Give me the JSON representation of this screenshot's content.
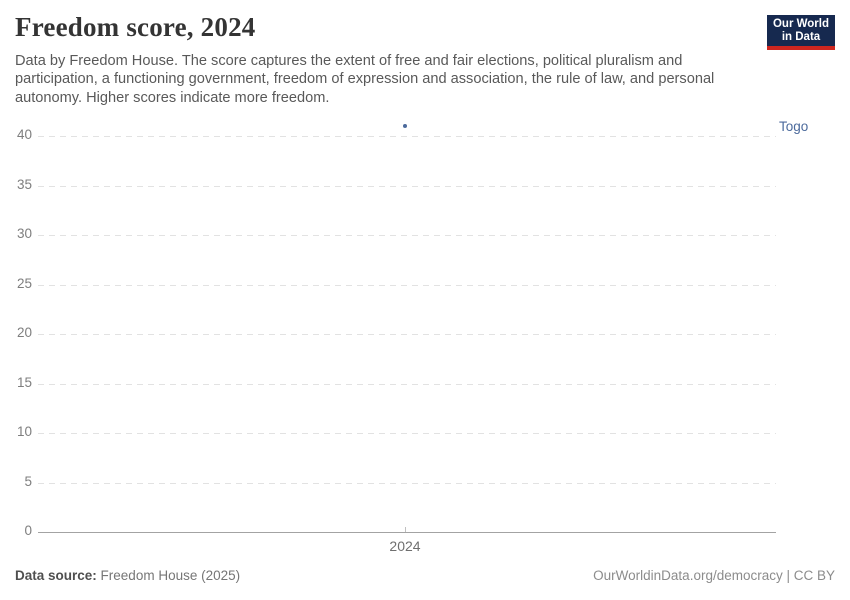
{
  "header": {
    "title": "Freedom score, 2024",
    "subtitle": "Data by Freedom House. The score captures the extent of free and fair elections, political pluralism and participation, a functioning government, freedom of expression and association, the rule of law, and personal autonomy. Higher scores indicate more freedom.",
    "logo": {
      "line1": "Our World",
      "line2": "in Data",
      "background_color": "#16294f",
      "accent_color": "#ce261f"
    }
  },
  "chart_data": {
    "type": "scatter",
    "title": "Freedom score, 2024",
    "x": [
      2024
    ],
    "xticks": [
      "2024"
    ],
    "series": [
      {
        "name": "Togo",
        "values": [
          41
        ],
        "color": "#4C6A9C"
      }
    ],
    "ylim": [
      0,
      40
    ],
    "yticks": [
      0,
      5,
      10,
      15,
      20,
      25,
      30,
      35,
      40
    ],
    "xlabel": "",
    "ylabel": "",
    "grid": "horizontal-dashed",
    "legend_position": "entity label right of data point"
  },
  "footer": {
    "source_label": "Data source:",
    "source_value": "Freedom House (2025)",
    "right_text": "OurWorldinData.org/democracy | CC BY"
  }
}
